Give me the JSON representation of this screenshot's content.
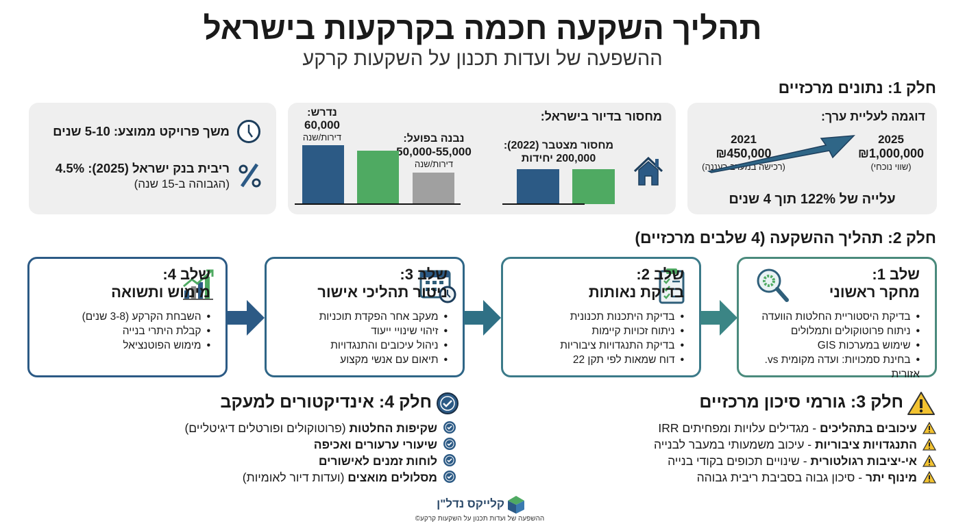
{
  "title": "תהליך השקעה חכמה בקרקעות בישראל",
  "subtitle": "ההשפעה של ועדות תכנון על השקעות קרקע",
  "part1": {
    "heading": "חלק 1: נתונים מרכזיים",
    "value_example": {
      "title": "דוגמה לעליית ערך:",
      "current": {
        "year": "2025",
        "price": "₪1,000,000",
        "note": "(שווי נוכחי)"
      },
      "past": {
        "year": "2021",
        "price": "₪450,000",
        "note": "(רכישה במערב רעננה)"
      },
      "summary": "עלייה של 122% תוך 4 שנים"
    },
    "shortage": {
      "title": "מחסור בדיור בישראל:",
      "cumulative_label": "מחסור מצטבר (2022):",
      "cumulative_value": "200,000 יחידות",
      "required_label": "נדרש:",
      "required_value": "60,000",
      "required_unit": "דירות/שנה",
      "built_label": "נבנה בפועל:",
      "built_value": "50,000-55,000",
      "built_unit": "דירות/שנה"
    },
    "facts": {
      "duration": "משך פרויקט ממוצע: 5-10 שנים",
      "rate": "ריבית בנק ישראל (2025): 4.5%",
      "rate_note": "(הגבוהה ב-15 שנה)"
    }
  },
  "part2": {
    "heading": "חלק 2: תהליך ההשקעה (4 שלבים מרכזיים)",
    "stages": [
      {
        "label": "שלב 1:",
        "name": "מחקר ראשוני",
        "items": [
          "בדיקת היסטוריית החלטות הוועדה",
          "ניתוח פרוטוקולים ותמלולים",
          "שימוש במערכות GIS",
          "בחינת סמכויות: ועדה מקומית vs. אזורית"
        ],
        "color": "#4a8a7c"
      },
      {
        "label": "שלב 2:",
        "name": "בדיקת נאותות",
        "items": [
          "בדיקת היתכנות תכנונית",
          "ניתוח זכויות קיימות",
          "בדיקת התנגדויות ציבוריות",
          "דוח שמאות לפי תקן 22"
        ],
        "color": "#3b7a89"
      },
      {
        "label": "שלב 3:",
        "name": "ניטור תהליכי אישור",
        "items": [
          "מעקב אחר הפקדת תוכניות",
          "זיהוי שינויי ייעוד",
          "ניהול עיכובים והתנגדויות",
          "תיאום עם אנשי מקצוע"
        ],
        "color": "#2f6687"
      },
      {
        "label": "שלב 4:",
        "name": "מימוש ותשואה",
        "items": [
          "השבחת הקרקע (3-8 שנים)",
          "קבלת היתרי בנייה",
          "מימוש הפוטנציאל"
        ],
        "color": "#2c5a85"
      }
    ]
  },
  "part3": {
    "heading": "חלק 3: גורמי סיכון מרכזיים",
    "items": [
      {
        "bold": "עיכובים בתהליכים",
        "rest": " - מגדילים עלויות ומפחיתים IRR"
      },
      {
        "bold": "התנגדויות ציבוריות",
        "rest": " - עיכוב משמעותי במעבר לבנייה"
      },
      {
        "bold": "אי-יציבות רגולטורית",
        "rest": " - שינויים תכופים בקודי בנייה"
      },
      {
        "bold": "מינוף יתר",
        "rest": " - סיכון גבוה בסביבת ריבית גבוהה"
      }
    ]
  },
  "part4": {
    "heading": "חלק 4: אינדיקטורים למעקב",
    "items": [
      {
        "bold": "שקיפות החלטות",
        "rest": " (פרוטוקולים ופורטלים דיגיטליים)"
      },
      {
        "bold": "שיעורי ערעורים ואכיפה",
        "rest": ""
      },
      {
        "bold": "לוחות זמנים לאישורים",
        "rest": ""
      },
      {
        "bold": "מסלולים מואצים",
        "rest": " (ועדות דיור לאומיות)"
      }
    ]
  },
  "footer": {
    "logo": "קלייקס נדל\"ן",
    "text": "ההשפעה של ועדות תכנון על השקעות קרקע©"
  },
  "colors": {
    "blue": "#2c5a85",
    "green": "#4faa62",
    "gray": "#a0a0a0",
    "warning": "#f2c230"
  }
}
